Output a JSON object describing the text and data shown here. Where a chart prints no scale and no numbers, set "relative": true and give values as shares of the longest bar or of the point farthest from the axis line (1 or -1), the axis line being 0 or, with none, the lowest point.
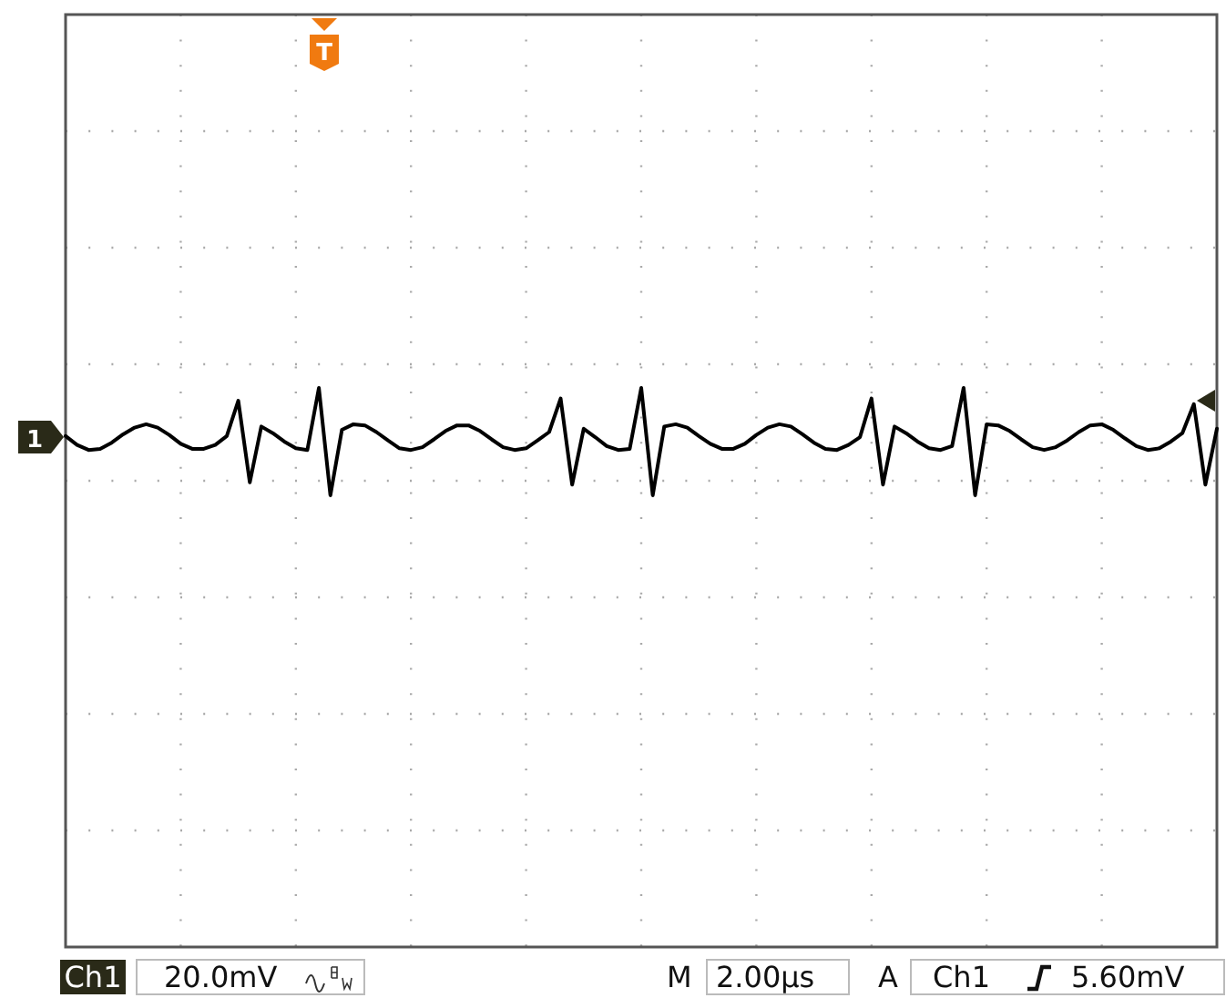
{
  "chart_data": {
    "type": "line",
    "relative": true,
    "grid": true,
    "color": "#000000",
    "categories": [
      null,
      null,
      null,
      null,
      null,
      null,
      null,
      null,
      null,
      null,
      null,
      null,
      null,
      null,
      null,
      null,
      null,
      null,
      null,
      null,
      null,
      null,
      null,
      null,
      null,
      null,
      null,
      null,
      null,
      null,
      null,
      null,
      null,
      null,
      null,
      null,
      null,
      null,
      null,
      null,
      null,
      null,
      null,
      null,
      null,
      null,
      null,
      null,
      null,
      null,
      null,
      null,
      null,
      null,
      null,
      null,
      null,
      null,
      null,
      null,
      null,
      null,
      null,
      null,
      null,
      null,
      null,
      null,
      null,
      null,
      null,
      null,
      null,
      null,
      null,
      null,
      null,
      null,
      null,
      null,
      null,
      null,
      null,
      null,
      null,
      null,
      null,
      null,
      null,
      null,
      null,
      null,
      null,
      null,
      null,
      null,
      null,
      null,
      null,
      null,
      null
    ],
    "values": [
      0.914,
      0.898,
      0.889,
      0.891,
      0.902,
      0.917,
      0.929,
      0.935,
      0.929,
      0.916,
      0.9,
      0.891,
      0.891,
      0.898,
      0.914,
      0.977,
      0.831,
      0.931,
      0.919,
      0.904,
      0.892,
      0.889,
      1,
      0.808,
      0.925,
      0.935,
      0.933,
      0.921,
      0.906,
      0.892,
      0.889,
      0.894,
      0.908,
      0.923,
      0.933,
      0.933,
      0.923,
      0.908,
      0.894,
      0.889,
      0.892,
      0.906,
      0.921,
      0.981,
      0.827,
      0.927,
      0.912,
      0.896,
      0.889,
      0.891,
      1,
      0.808,
      0.931,
      0.935,
      0.929,
      0.914,
      0.9,
      0.891,
      0.891,
      0.9,
      0.916,
      0.929,
      0.935,
      0.931,
      0.917,
      0.902,
      0.891,
      0.889,
      0.898,
      0.912,
      0.981,
      0.827,
      0.931,
      0.919,
      0.904,
      0.892,
      0.889,
      0.896,
      1,
      0.808,
      0.935,
      0.933,
      0.923,
      0.908,
      0.894,
      0.889,
      0.894,
      0.906,
      0.921,
      0.933,
      0.935,
      0.925,
      0.91,
      0.896,
      0.889,
      0.892,
      0.904,
      0.919,
      0.971,
      0.827,
      0.927
    ],
    "annotations": [
      "1",
      "T",
      "Ch1",
      "20.0mV",
      "M",
      "2.00µs",
      "A",
      "Ch1",
      "5.60mV"
    ]
  }
}
